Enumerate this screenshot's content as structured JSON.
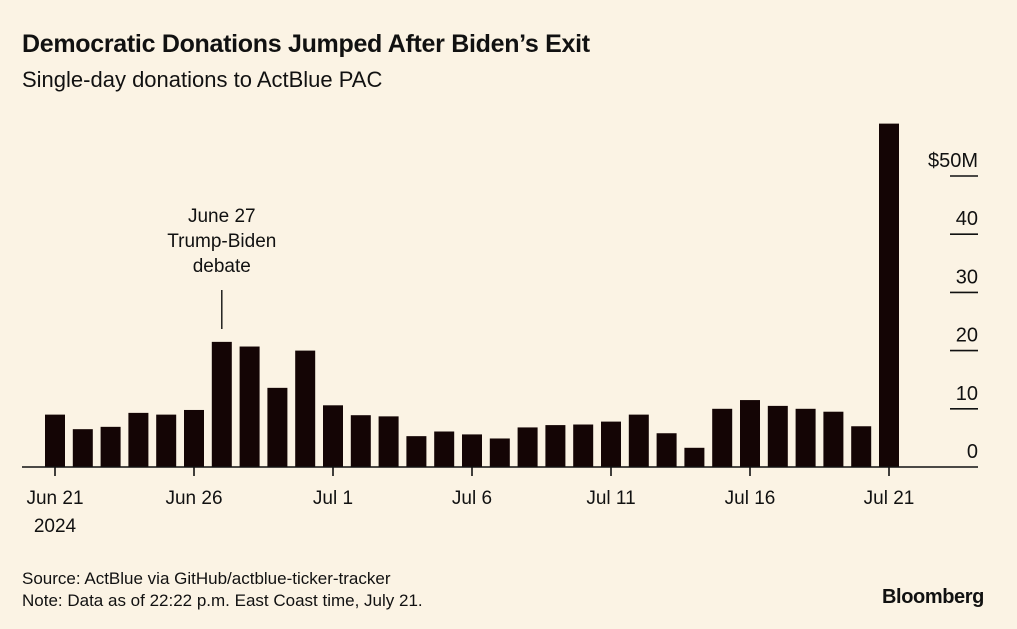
{
  "title": "Democratic Donations Jumped After Biden’s Exit",
  "subtitle": "Single-day donations to ActBlue PAC",
  "footer": {
    "source": "Source: ActBlue via GitHub/actblue-ticker-tracker",
    "note": "Note: Data as of 22:22 p.m. East Coast time, July 21."
  },
  "brand": "Bloomberg",
  "colors": {
    "background": "#fbf3e4",
    "bar": "#140505",
    "axis": "#111111"
  },
  "chart_data": {
    "type": "bar",
    "title": "Democratic Donations Jumped After Biden’s Exit",
    "subtitle": "Single-day donations to ActBlue PAC",
    "unit": "$M",
    "xlabel": "",
    "ylabel": "",
    "ylim": [
      0,
      59
    ],
    "y_ticks": [
      {
        "value": 50,
        "label": "$50M"
      },
      {
        "value": 40,
        "label": "40"
      },
      {
        "value": 30,
        "label": "30"
      },
      {
        "value": 20,
        "label": "20"
      },
      {
        "value": 10,
        "label": "10"
      },
      {
        "value": 0,
        "label": "0"
      }
    ],
    "y_axis_side": "right",
    "categories": [
      "Jun 21",
      "Jun 22",
      "Jun 23",
      "Jun 24",
      "Jun 25",
      "Jun 26",
      "Jun 27",
      "Jun 28",
      "Jun 29",
      "Jun 30",
      "Jul 1",
      "Jul 2",
      "Jul 3",
      "Jul 4",
      "Jul 5",
      "Jul 6",
      "Jul 7",
      "Jul 8",
      "Jul 9",
      "Jul 10",
      "Jul 11",
      "Jul 12",
      "Jul 13",
      "Jul 14",
      "Jul 15",
      "Jul 16",
      "Jul 17",
      "Jul 18",
      "Jul 19",
      "Jul 20",
      "Jul 21"
    ],
    "values": [
      9.0,
      6.5,
      6.9,
      9.3,
      9.0,
      9.8,
      21.5,
      20.7,
      13.6,
      20.0,
      10.6,
      8.9,
      8.7,
      5.3,
      6.1,
      5.6,
      4.9,
      6.8,
      7.2,
      7.3,
      7.8,
      9.0,
      5.8,
      3.3,
      10.0,
      11.5,
      10.5,
      10.0,
      9.5,
      7.0,
      59.0
    ],
    "x_tick_labels": [
      {
        "index": 0,
        "label": "Jun 21",
        "sublabel": "2024"
      },
      {
        "index": 5,
        "label": "Jun 26"
      },
      {
        "index": 10,
        "label": "Jul 1"
      },
      {
        "index": 15,
        "label": "Jul 6"
      },
      {
        "index": 20,
        "label": "Jul 11"
      },
      {
        "index": 25,
        "label": "Jul 16"
      },
      {
        "index": 30,
        "label": "Jul 21"
      }
    ],
    "annotations": [
      {
        "index": 6,
        "lines": [
          "June 27",
          "Trump-Biden",
          "debate"
        ]
      }
    ],
    "grid": false,
    "legend": "none"
  }
}
